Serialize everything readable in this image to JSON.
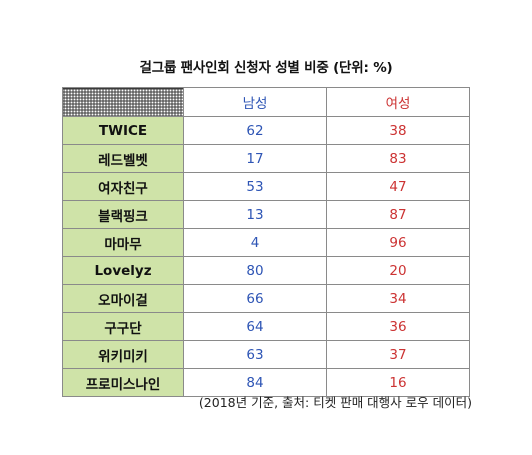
{
  "chart_data": {
    "type": "table",
    "title": "걸그룹 팬사인회 신청자 성별 비중 (단위: %)",
    "columns": [
      "남성",
      "여성"
    ],
    "categories": [
      "TWICE",
      "레드벨벳",
      "여자친구",
      "블랙핑크",
      "마마무",
      "Lovelyz",
      "오마이걸",
      "구구단",
      "위키미키",
      "프로미스나인"
    ],
    "series": [
      {
        "name": "남성",
        "values": [
          62,
          17,
          53,
          13,
          4,
          80,
          66,
          64,
          63,
          84
        ]
      },
      {
        "name": "여성",
        "values": [
          38,
          83,
          47,
          87,
          96,
          20,
          34,
          36,
          37,
          16
        ]
      }
    ],
    "note": "(2018년 기준, 출처: 티켓 판매 대행사 로우 데이터)",
    "colors": {
      "male": "#2e55b5",
      "female": "#cc3333",
      "label_bg": "#cfe3a8"
    }
  }
}
